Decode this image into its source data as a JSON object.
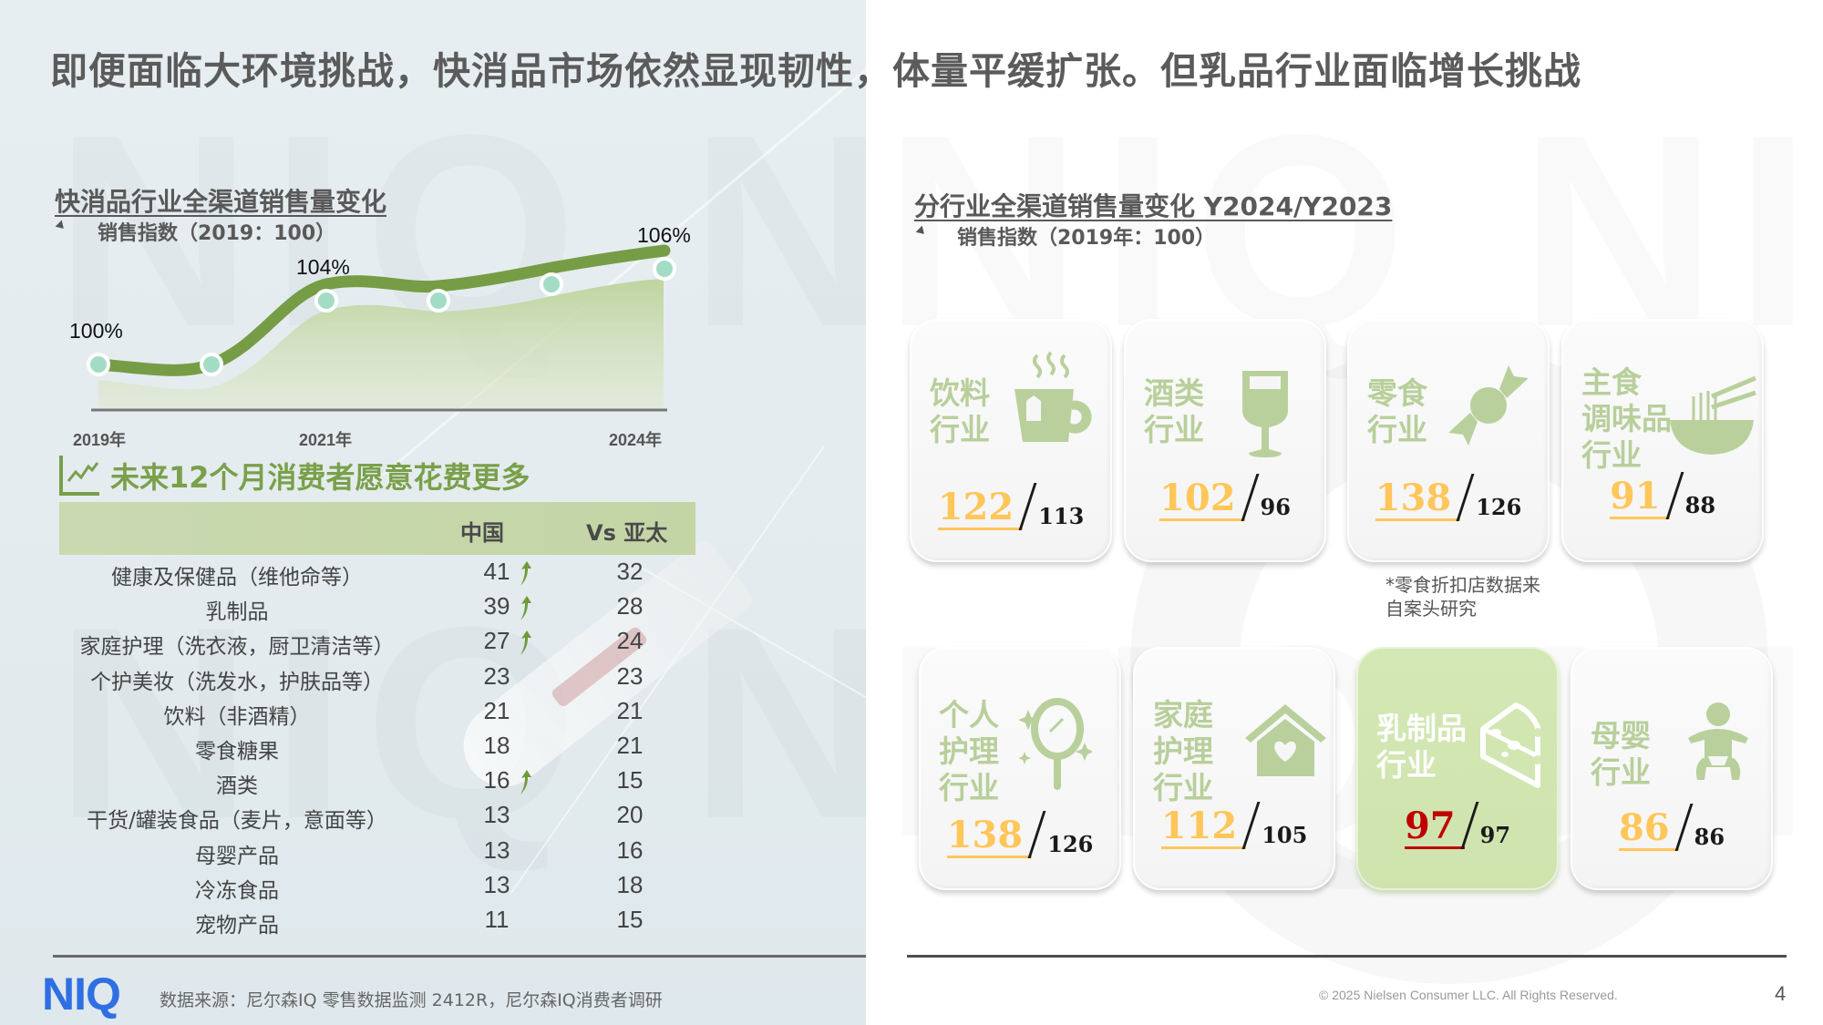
{
  "headline": "即便面临大环境挑战，快消品市场依然显现韧性，体量平缓扩张。但乳品行业面临增长挑战",
  "left_section": {
    "title": "快消品行业全渠道销售量变化",
    "subtitle": "销售指数（2019：100）",
    "chart_labels": {
      "p0": "100%",
      "p2": "104%",
      "p5": "106%"
    },
    "x_labels": [
      "2019年",
      "2021年",
      "2024年"
    ]
  },
  "chart_data": {
    "type": "line",
    "title": "快消品行业全渠道销售量变化",
    "subtitle": "销售指数（2019：100）",
    "x": [
      "2019",
      "2020",
      "2021",
      "2022",
      "2023",
      "2024"
    ],
    "series": [
      {
        "name": "销售指数",
        "values": [
          100,
          100,
          104,
          104,
          105,
          106
        ]
      }
    ],
    "data_labels": [
      {
        "x": "2019",
        "label": "100%"
      },
      {
        "x": "2021",
        "label": "104%"
      },
      {
        "x": "2024",
        "label": "106%"
      }
    ],
    "xtick_labels": [
      "2019年",
      "2021年",
      "2024年"
    ],
    "xlabel": "",
    "ylabel": "",
    "grid": false,
    "area_fill": true
  },
  "survey": {
    "title": "未来12个月消费者愿意花费更多",
    "col_china": "中国",
    "col_apac": "Vs 亚太",
    "rows": [
      {
        "category": "健康及保健品（维他命等）",
        "china": "41",
        "apac": "32",
        "up": true
      },
      {
        "category": "乳制品",
        "china": "39",
        "apac": "28",
        "up": true
      },
      {
        "category": "家庭护理（洗衣液，厨卫清洁等）",
        "china": "27",
        "apac": "24",
        "up": true
      },
      {
        "category": "个护美妆（洗发水，护肤品等）",
        "china": "23",
        "apac": "23",
        "up": false
      },
      {
        "category": "饮料（非酒精）",
        "china": "21",
        "apac": "21",
        "up": false
      },
      {
        "category": "零食糖果",
        "china": "18",
        "apac": "21",
        "up": false
      },
      {
        "category": "酒类",
        "china": "16",
        "apac": "15",
        "up": true
      },
      {
        "category": "干货/罐装食品（麦片，意面等）",
        "china": "13",
        "apac": "20",
        "up": false
      },
      {
        "category": "母婴产品",
        "china": "13",
        "apac": "16",
        "up": false
      },
      {
        "category": "冷冻食品",
        "china": "13",
        "apac": "18",
        "up": false
      },
      {
        "category": "宠物产品",
        "china": "11",
        "apac": "15",
        "up": false
      }
    ]
  },
  "right_section": {
    "title": "分行业全渠道销售量变化 Y2024/Y2023",
    "subtitle": "销售指数（2019年：100）",
    "cards": [
      {
        "label": "饮料\n行业",
        "icon": "tea-cup-icon",
        "y2024": "122",
        "y2023": "113",
        "highlight": false
      },
      {
        "label": "酒类\n行业",
        "icon": "wine-glass-icon",
        "y2024": "102",
        "y2023": "96",
        "highlight": false
      },
      {
        "label": "零食\n行业",
        "icon": "candy-icon",
        "y2024": "138",
        "y2023": "126",
        "highlight": false
      },
      {
        "label": "主食\n调味品\n行业",
        "icon": "noodle-bowl-icon",
        "y2024": "91",
        "y2023": "88",
        "highlight": false
      },
      {
        "label": "个人\n护理\n行业",
        "icon": "mirror-sparkle-icon",
        "y2024": "138",
        "y2023": "126",
        "highlight": false
      },
      {
        "label": "家庭\n护理\n行业",
        "icon": "house-heart-icon",
        "y2024": "112",
        "y2023": "105",
        "highlight": false
      },
      {
        "label": "乳制品\n行业",
        "icon": "cheese-icon",
        "y2024": "97",
        "y2023": "97",
        "highlight": true
      },
      {
        "label": "母婴\n行业",
        "icon": "baby-icon",
        "y2024": "86",
        "y2023": "86",
        "highlight": false
      }
    ],
    "footnote": "*零食折扣店数据来\n自案头研究"
  },
  "colors": {
    "accent_green": "#7aa04a",
    "card_label_green": "#b8cf9b",
    "value_gold": "#ffc65a",
    "highlight_red": "#c00000",
    "highlight_bg": "#d3e8b4",
    "logo_blue": "#2f6fe3"
  },
  "footer": {
    "logo": "NIQ",
    "source": "数据来源：尼尔森IQ 零售数据监测 2412R，尼尔森IQ消费者调研",
    "copyright": "© 2025 Nielsen Consumer LLC. All Rights Reserved.",
    "page": "4"
  }
}
